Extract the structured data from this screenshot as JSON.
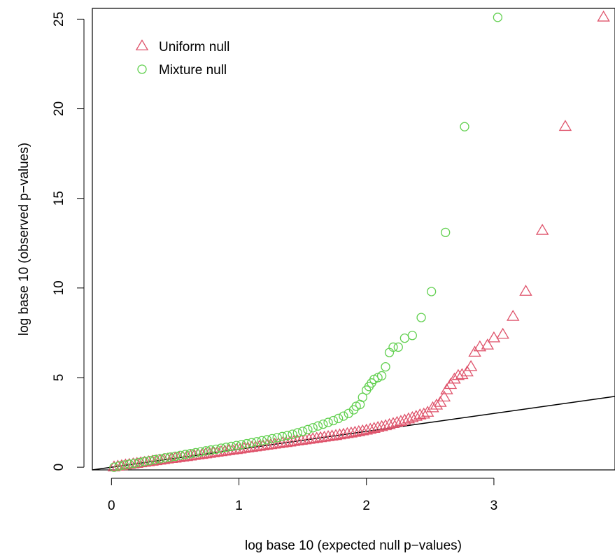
{
  "chart_data": {
    "type": "scatter",
    "title": "",
    "xlabel": "log base 10 (expected null p−values)",
    "ylabel": "log base 10 (observed p−values)",
    "xlim": [
      -0.15,
      3.95
    ],
    "ylim": [
      -0.15,
      25.6
    ],
    "x_ticks": [
      0,
      1,
      2,
      3
    ],
    "y_ticks": [
      0,
      5,
      10,
      15,
      20,
      25
    ],
    "x_tick_labels": [
      "0",
      "1",
      "2",
      "3"
    ],
    "y_tick_labels": [
      "0",
      "5",
      "10",
      "15",
      "20",
      "25"
    ],
    "grid": false,
    "legend_position": "top-left",
    "reference_line": {
      "intercept": 0,
      "slope": 1,
      "color": "#000000"
    },
    "series": [
      {
        "name": "Uniform null",
        "marker": "triangle",
        "color": "#DF536B",
        "points": [
          [
            0.02,
            0.0
          ],
          [
            0.05,
            0.04
          ],
          [
            0.08,
            0.07
          ],
          [
            0.11,
            0.11
          ],
          [
            0.14,
            0.14
          ],
          [
            0.17,
            0.17
          ],
          [
            0.2,
            0.2
          ],
          [
            0.23,
            0.23
          ],
          [
            0.26,
            0.26
          ],
          [
            0.29,
            0.29
          ],
          [
            0.32,
            0.32
          ],
          [
            0.35,
            0.35
          ],
          [
            0.38,
            0.38
          ],
          [
            0.41,
            0.41
          ],
          [
            0.44,
            0.44
          ],
          [
            0.47,
            0.47
          ],
          [
            0.5,
            0.49
          ],
          [
            0.53,
            0.52
          ],
          [
            0.56,
            0.55
          ],
          [
            0.59,
            0.58
          ],
          [
            0.62,
            0.61
          ],
          [
            0.65,
            0.64
          ],
          [
            0.68,
            0.67
          ],
          [
            0.71,
            0.7
          ],
          [
            0.74,
            0.73
          ],
          [
            0.77,
            0.76
          ],
          [
            0.8,
            0.79
          ],
          [
            0.83,
            0.82
          ],
          [
            0.86,
            0.85
          ],
          [
            0.89,
            0.88
          ],
          [
            0.92,
            0.91
          ],
          [
            0.95,
            0.94
          ],
          [
            0.98,
            0.97
          ],
          [
            1.01,
            1.0
          ],
          [
            1.04,
            1.03
          ],
          [
            1.07,
            1.06
          ],
          [
            1.1,
            1.09
          ],
          [
            1.13,
            1.12
          ],
          [
            1.16,
            1.15
          ],
          [
            1.19,
            1.18
          ],
          [
            1.22,
            1.21
          ],
          [
            1.25,
            1.24
          ],
          [
            1.28,
            1.27
          ],
          [
            1.31,
            1.3
          ],
          [
            1.34,
            1.33
          ],
          [
            1.37,
            1.36
          ],
          [
            1.4,
            1.39
          ],
          [
            1.43,
            1.42
          ],
          [
            1.46,
            1.45
          ],
          [
            1.49,
            1.48
          ],
          [
            1.52,
            1.51
          ],
          [
            1.55,
            1.54
          ],
          [
            1.58,
            1.57
          ],
          [
            1.61,
            1.6
          ],
          [
            1.64,
            1.63
          ],
          [
            1.67,
            1.66
          ],
          [
            1.7,
            1.69
          ],
          [
            1.73,
            1.72
          ],
          [
            1.76,
            1.75
          ],
          [
            1.79,
            1.79
          ],
          [
            1.82,
            1.82
          ],
          [
            1.85,
            1.86
          ],
          [
            1.88,
            1.89
          ],
          [
            1.91,
            1.93
          ],
          [
            1.94,
            1.97
          ],
          [
            1.97,
            2.01
          ],
          [
            2.0,
            2.05
          ],
          [
            2.03,
            2.1
          ],
          [
            2.06,
            2.15
          ],
          [
            2.09,
            2.2
          ],
          [
            2.12,
            2.25
          ],
          [
            2.15,
            2.3
          ],
          [
            2.18,
            2.36
          ],
          [
            2.21,
            2.42
          ],
          [
            2.24,
            2.48
          ],
          [
            2.27,
            2.54
          ],
          [
            2.3,
            2.61
          ],
          [
            2.33,
            2.68
          ],
          [
            2.36,
            2.75
          ],
          [
            2.39,
            2.82
          ],
          [
            2.42,
            2.9
          ],
          [
            2.45,
            2.95
          ],
          [
            2.48,
            3.05
          ],
          [
            2.52,
            3.3
          ],
          [
            2.55,
            3.45
          ],
          [
            2.58,
            3.6
          ],
          [
            2.61,
            3.9
          ],
          [
            2.63,
            4.3
          ],
          [
            2.66,
            4.6
          ],
          [
            2.69,
            4.9
          ],
          [
            2.72,
            5.1
          ],
          [
            2.75,
            5.15
          ],
          [
            2.79,
            5.3
          ],
          [
            2.82,
            5.6
          ],
          [
            2.85,
            6.4
          ],
          [
            2.89,
            6.7
          ],
          [
            2.95,
            6.8
          ],
          [
            3.0,
            7.2
          ],
          [
            3.07,
            7.4
          ],
          [
            3.15,
            8.4
          ],
          [
            3.25,
            9.8
          ],
          [
            3.38,
            13.2
          ],
          [
            3.56,
            19.0
          ],
          [
            3.86,
            25.1
          ]
        ]
      },
      {
        "name": "Mixture null",
        "marker": "circle",
        "color": "#61D04F",
        "points": [
          [
            0.02,
            0.0
          ],
          [
            0.06,
            0.07
          ],
          [
            0.1,
            0.12
          ],
          [
            0.14,
            0.17
          ],
          [
            0.18,
            0.22
          ],
          [
            0.22,
            0.27
          ],
          [
            0.26,
            0.32
          ],
          [
            0.3,
            0.37
          ],
          [
            0.34,
            0.42
          ],
          [
            0.38,
            0.47
          ],
          [
            0.42,
            0.52
          ],
          [
            0.46,
            0.56
          ],
          [
            0.5,
            0.61
          ],
          [
            0.54,
            0.66
          ],
          [
            0.58,
            0.71
          ],
          [
            0.62,
            0.76
          ],
          [
            0.66,
            0.81
          ],
          [
            0.7,
            0.86
          ],
          [
            0.74,
            0.91
          ],
          [
            0.78,
            0.96
          ],
          [
            0.82,
            1.0
          ],
          [
            0.86,
            1.06
          ],
          [
            0.9,
            1.11
          ],
          [
            0.94,
            1.16
          ],
          [
            0.98,
            1.21
          ],
          [
            1.02,
            1.26
          ],
          [
            1.06,
            1.31
          ],
          [
            1.1,
            1.37
          ],
          [
            1.14,
            1.42
          ],
          [
            1.18,
            1.48
          ],
          [
            1.22,
            1.53
          ],
          [
            1.26,
            1.59
          ],
          [
            1.3,
            1.65
          ],
          [
            1.34,
            1.71
          ],
          [
            1.38,
            1.77
          ],
          [
            1.42,
            1.84
          ],
          [
            1.46,
            1.92
          ],
          [
            1.5,
            2.0
          ],
          [
            1.54,
            2.1
          ],
          [
            1.58,
            2.2
          ],
          [
            1.62,
            2.3
          ],
          [
            1.66,
            2.4
          ],
          [
            1.7,
            2.5
          ],
          [
            1.74,
            2.6
          ],
          [
            1.78,
            2.72
          ],
          [
            1.82,
            2.85
          ],
          [
            1.86,
            3.0
          ],
          [
            1.9,
            3.2
          ],
          [
            1.92,
            3.4
          ],
          [
            1.95,
            3.5
          ],
          [
            1.97,
            3.9
          ],
          [
            2.0,
            4.3
          ],
          [
            2.02,
            4.5
          ],
          [
            2.04,
            4.7
          ],
          [
            2.06,
            4.9
          ],
          [
            2.09,
            5.0
          ],
          [
            2.12,
            5.1
          ],
          [
            2.15,
            5.6
          ],
          [
            2.18,
            6.4
          ],
          [
            2.21,
            6.7
          ],
          [
            2.25,
            6.7
          ],
          [
            2.3,
            7.2
          ],
          [
            2.36,
            7.35
          ],
          [
            2.43,
            8.35
          ],
          [
            2.51,
            9.8
          ],
          [
            2.62,
            13.1
          ],
          [
            2.77,
            19.0
          ],
          [
            3.03,
            25.1
          ]
        ]
      }
    ]
  }
}
